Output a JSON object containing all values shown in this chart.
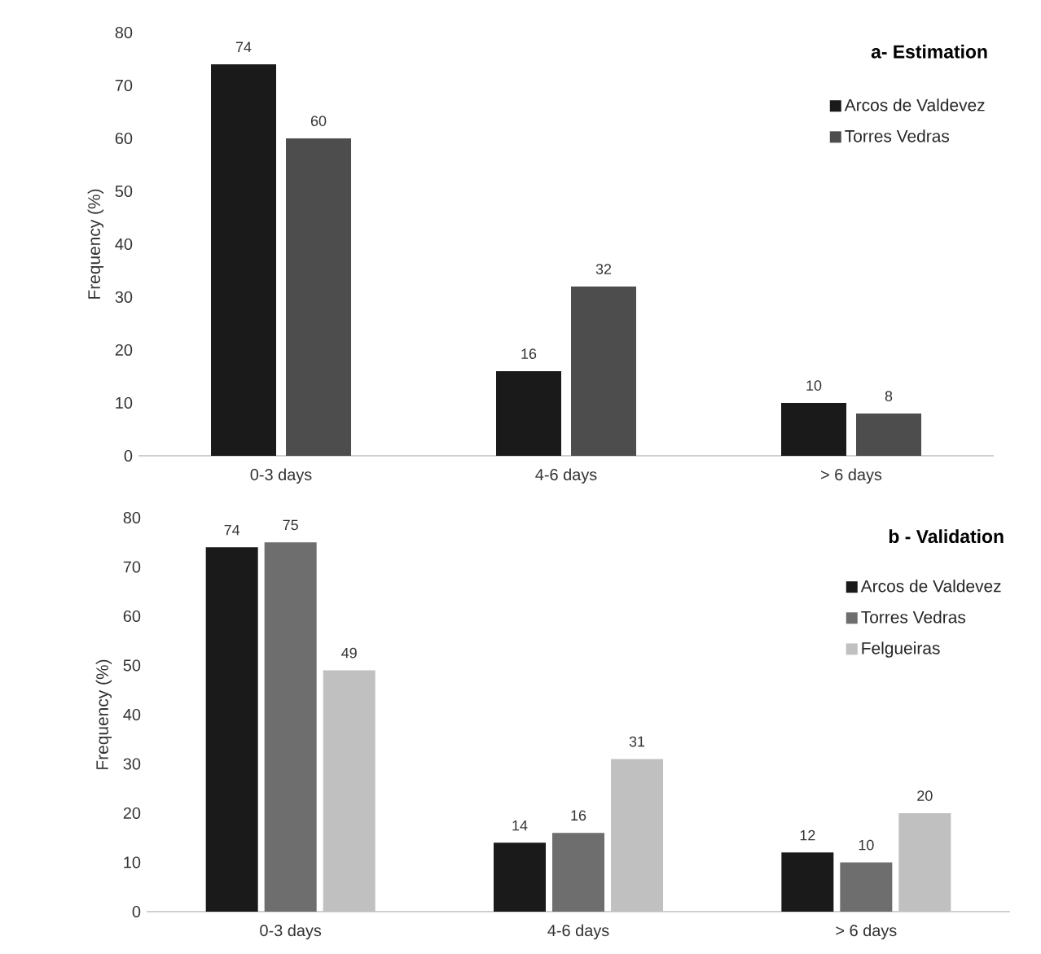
{
  "chart_data": [
    {
      "type": "bar",
      "title": "a- Estimation",
      "ylabel": "Frequency (%)",
      "categories": [
        "0-3 days",
        "4-6 days",
        "> 6 days"
      ],
      "series": [
        {
          "name": "Arcos de Valdevez",
          "color": "#1a1a1a",
          "values": [
            74,
            16,
            10
          ]
        },
        {
          "name": "Torres Vedras",
          "color": "#4d4d4d",
          "values": [
            60,
            32,
            8
          ]
        }
      ],
      "ylim": [
        0,
        80
      ],
      "yticks": [
        0,
        10,
        20,
        30,
        40,
        50,
        60,
        70,
        80
      ],
      "data_labels": true,
      "legend": "top right"
    },
    {
      "type": "bar",
      "title": "b - Validation",
      "ylabel": "Frequency (%)",
      "categories": [
        "0-3 days",
        "4-6 days",
        "> 6 days"
      ],
      "series": [
        {
          "name": "Arcos de Valdevez",
          "color": "#1a1a1a",
          "values": [
            74,
            14,
            12
          ]
        },
        {
          "name": "Torres Vedras",
          "color": "#6e6e6e",
          "values": [
            75,
            16,
            10
          ]
        },
        {
          "name": "Felgueiras",
          "color": "#c0c0c0",
          "values": [
            49,
            31,
            20
          ]
        }
      ],
      "ylim": [
        0,
        80
      ],
      "yticks": [
        0,
        10,
        20,
        30,
        40,
        50,
        60,
        70,
        80
      ],
      "data_labels": true,
      "legend": "top right"
    }
  ]
}
